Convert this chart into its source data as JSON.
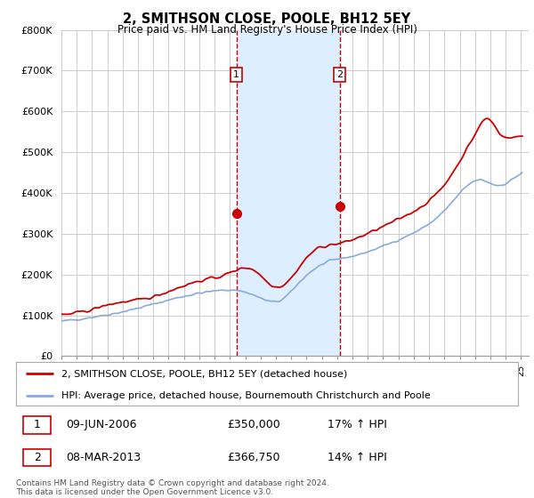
{
  "title": "2, SMITHSON CLOSE, POOLE, BH12 5EY",
  "subtitle": "Price paid vs. HM Land Registry's House Price Index (HPI)",
  "legend_line1": "2, SMITHSON CLOSE, POOLE, BH12 5EY (detached house)",
  "legend_line2": "HPI: Average price, detached house, Bournemouth Christchurch and Poole",
  "transaction1_label": "1",
  "transaction1_date": "09-JUN-2006",
  "transaction1_price": "£350,000",
  "transaction1_hpi": "17% ↑ HPI",
  "transaction2_label": "2",
  "transaction2_date": "08-MAR-2013",
  "transaction2_price": "£366,750",
  "transaction2_hpi": "14% ↑ HPI",
  "footnote": "Contains HM Land Registry data © Crown copyright and database right 2024.\nThis data is licensed under the Open Government Licence v3.0.",
  "price_color": "#cc0000",
  "hpi_color": "#88aadd",
  "shaded_color": "#ddeeff",
  "vline_color": "#cc0000",
  "ylim": [
    0,
    800000
  ],
  "yticks": [
    0,
    100000,
    200000,
    300000,
    400000,
    500000,
    600000,
    700000,
    800000
  ],
  "background_color": "#ffffff",
  "grid_color": "#cccccc",
  "fig_width": 6.0,
  "fig_height": 5.6,
  "dpi": 100
}
